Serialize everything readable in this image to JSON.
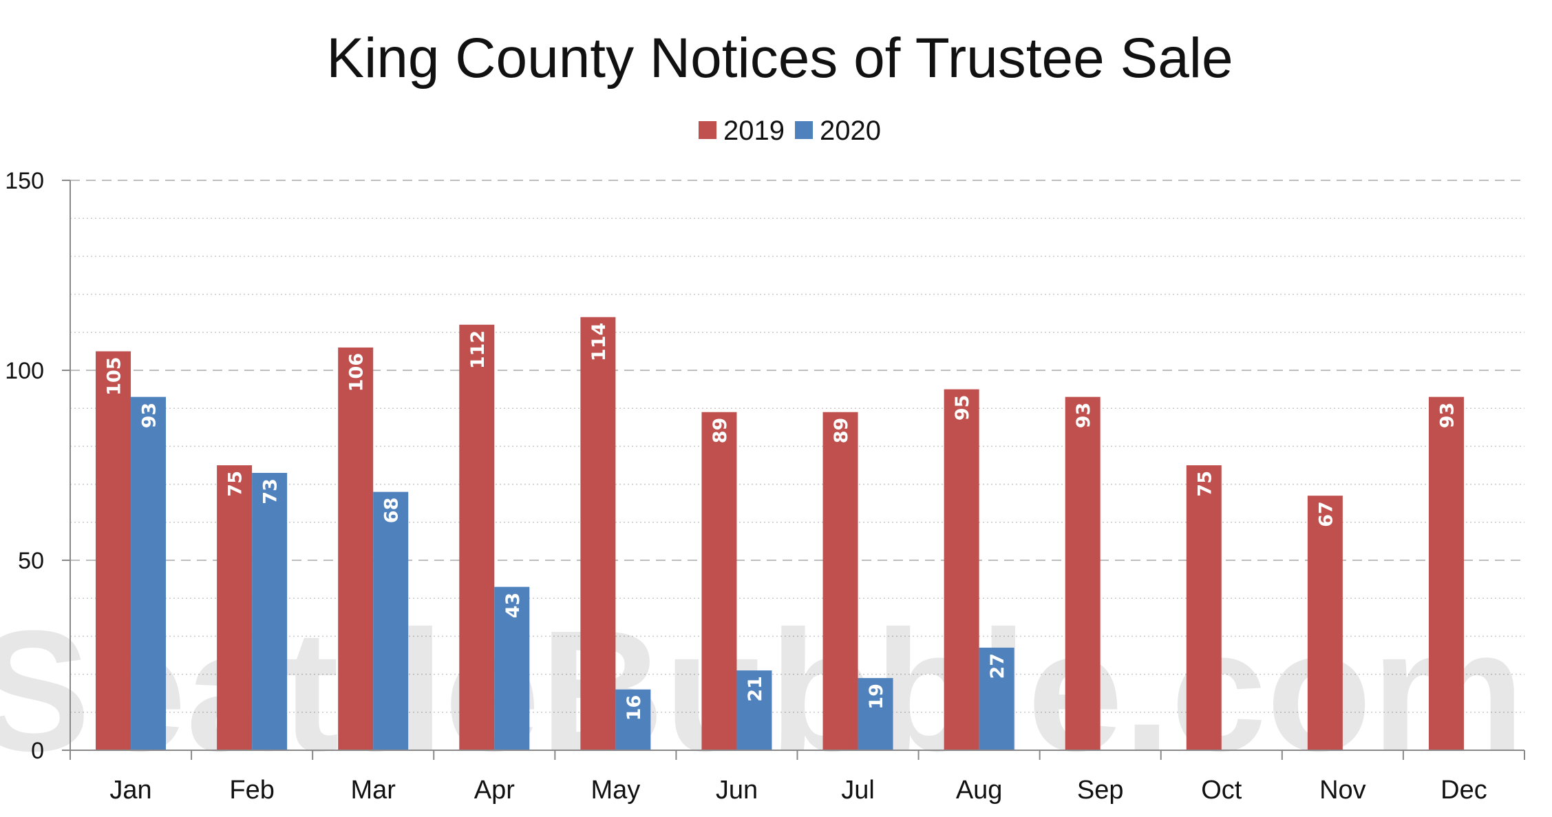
{
  "colors": {
    "series_2019": "#C0504D",
    "series_2020": "#4F81BD",
    "grid": "#c8c8c8",
    "axis": "#888888"
  },
  "watermark": "SeattleBubble.com",
  "chart_data": {
    "type": "bar",
    "title": "King County Notices of Trustee Sale",
    "xlabel": "",
    "ylabel": "",
    "ylim": [
      0,
      150
    ],
    "yticks": [
      0,
      50,
      100,
      150
    ],
    "grid": true,
    "legend_position": "top-center",
    "categories": [
      "Jan",
      "Feb",
      "Mar",
      "Apr",
      "May",
      "Jun",
      "Jul",
      "Aug",
      "Sep",
      "Oct",
      "Nov",
      "Dec"
    ],
    "series": [
      {
        "name": "2019",
        "values": [
          105,
          75,
          106,
          112,
          114,
          89,
          89,
          95,
          93,
          75,
          67,
          93
        ]
      },
      {
        "name": "2020",
        "values": [
          93,
          73,
          68,
          43,
          16,
          21,
          19,
          27,
          null,
          null,
          null,
          null
        ]
      }
    ]
  }
}
